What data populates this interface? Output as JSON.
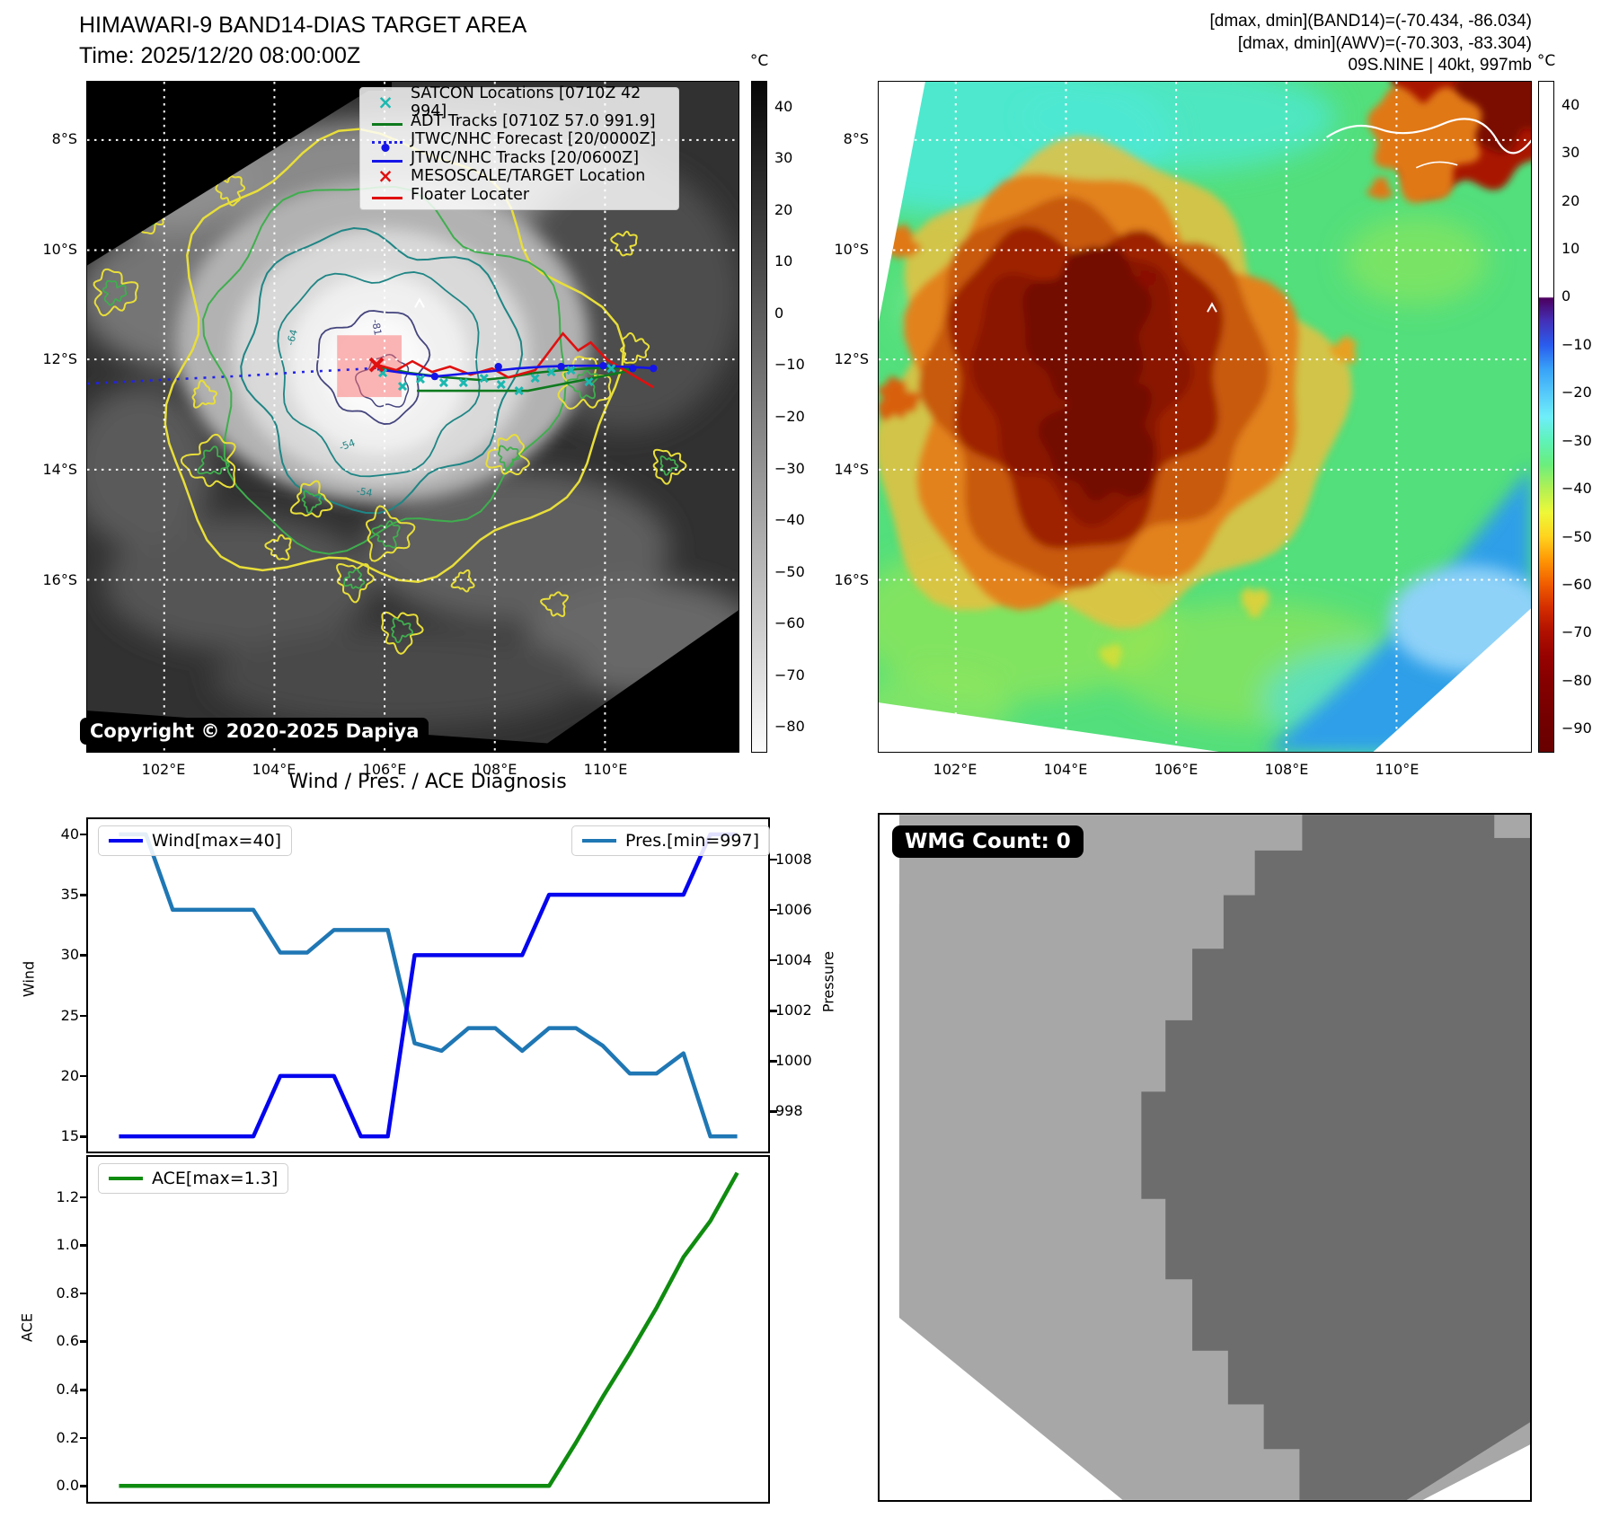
{
  "panel_band14": {
    "title": "HIMAWARI-9 BAND14-DIAS TARGET AREA",
    "time": "Time: 2025/12/20 08:00:00Z",
    "copyright": "Copyright © 2020-2025 Dapiya",
    "legend": [
      {
        "marker": "teal-x",
        "label": "SATCON Locations [0710Z 42 994]"
      },
      {
        "marker": "green-line",
        "label": "ADT Tracks [0710Z 57.0 991.9]"
      },
      {
        "marker": "blue-dotted-line",
        "label": "JTWC/NHC Forecast [20/0000Z]"
      },
      {
        "marker": "blue-line-dot",
        "label": "JTWC/NHC Tracks [20/0600Z]"
      },
      {
        "marker": "red-x",
        "label": "MESOSCALE/TARGET Location"
      },
      {
        "marker": "red-line",
        "label": "Floater Locater"
      }
    ],
    "contour_labels": [
      "-64",
      "-81",
      "-54",
      "-54"
    ],
    "lat_ticks": [
      "8°S",
      "10°S",
      "12°S",
      "14°S",
      "16°S"
    ],
    "lon_ticks": [
      "102°E",
      "104°E",
      "106°E",
      "108°E",
      "110°E"
    ],
    "colorbar_unit": "°C",
    "colorbar_ticks": [
      "40",
      "30",
      "20",
      "10",
      "0",
      "−10",
      "−20",
      "−30",
      "−40",
      "−50",
      "−60",
      "−70",
      "−80"
    ]
  },
  "panel_awv": {
    "header_line1": "[dmax, dmin](BAND14)=(-70.434, -86.034)",
    "header_line2": "[dmax, dmin](AWV)=(-70.303, -83.304)",
    "header_line3": "09S.NINE | 40kt, 997mb",
    "lat_ticks": [
      "8°S",
      "10°S",
      "12°S",
      "14°S",
      "16°S"
    ],
    "lon_ticks": [
      "102°E",
      "104°E",
      "106°E",
      "108°E",
      "110°E"
    ],
    "colorbar_unit": "°C",
    "colorbar_ticks": [
      "40",
      "30",
      "20",
      "10",
      "0",
      "−10",
      "−20",
      "−30",
      "−40",
      "−50",
      "−60",
      "−70",
      "−80",
      "−90"
    ]
  },
  "panel_diagnosis": {
    "title": "Wind / Pres. / ACE Diagnosis"
  },
  "panel_wmg": {
    "badge": "WMG Count: 0"
  },
  "chart_data": [
    {
      "type": "line",
      "title": "Wind / Pres. / ACE Diagnosis",
      "x_note": "24 unlabeled time steps (no x tick labels shown)",
      "series": [
        {
          "name": "Wind[max=40]",
          "axis": "left",
          "color": "#0404ee",
          "values": [
            15,
            15,
            15,
            15,
            15,
            15,
            20,
            20,
            20,
            15,
            15,
            30,
            30,
            30,
            30,
            30,
            35,
            35,
            35,
            35,
            35,
            35,
            40,
            40
          ]
        },
        {
          "name": "Pres.[min=997]",
          "axis": "right",
          "color": "#1f77b4",
          "values": [
            1009,
            1009,
            1006,
            1006,
            1006,
            1006,
            1004.3,
            1004.3,
            1005.2,
            1005.2,
            1005.2,
            1000.7,
            1000.4,
            1001.3,
            1001.3,
            1000.4,
            1001.3,
            1001.3,
            1000.6,
            999.5,
            999.5,
            1000.3,
            997,
            997
          ]
        }
      ],
      "ylabel_left": "Wind",
      "ylabel_right": "Pressure",
      "yticks_left": [
        "15",
        "20",
        "25",
        "30",
        "35",
        "40"
      ],
      "yticks_right": [
        "998",
        "1000",
        "1002",
        "1004",
        "1006",
        "1008"
      ],
      "ylim_left": [
        13.75,
        41.25
      ],
      "ylim_right": [
        996.4,
        1009.6
      ],
      "grid": false,
      "legend_position": [
        "upper-left",
        "upper-right"
      ]
    },
    {
      "type": "line",
      "x_note": "24 unlabeled time steps (no x tick labels shown)",
      "series": [
        {
          "name": "ACE[max=1.3]",
          "axis": "left",
          "color": "#0f8c10",
          "values": [
            0,
            0,
            0,
            0,
            0,
            0,
            0,
            0,
            0,
            0,
            0,
            0,
            0,
            0,
            0,
            0,
            0,
            0.18,
            0.37,
            0.55,
            0.74,
            0.95,
            1.1,
            1.3
          ]
        }
      ],
      "ylabel_left": "ACE",
      "yticks_left": [
        "0.0",
        "0.2",
        "0.4",
        "0.6",
        "0.8",
        "1.0",
        "1.2"
      ],
      "ylim_left": [
        -0.066,
        1.366
      ],
      "grid": false,
      "legend_position": [
        "upper-left"
      ]
    }
  ]
}
